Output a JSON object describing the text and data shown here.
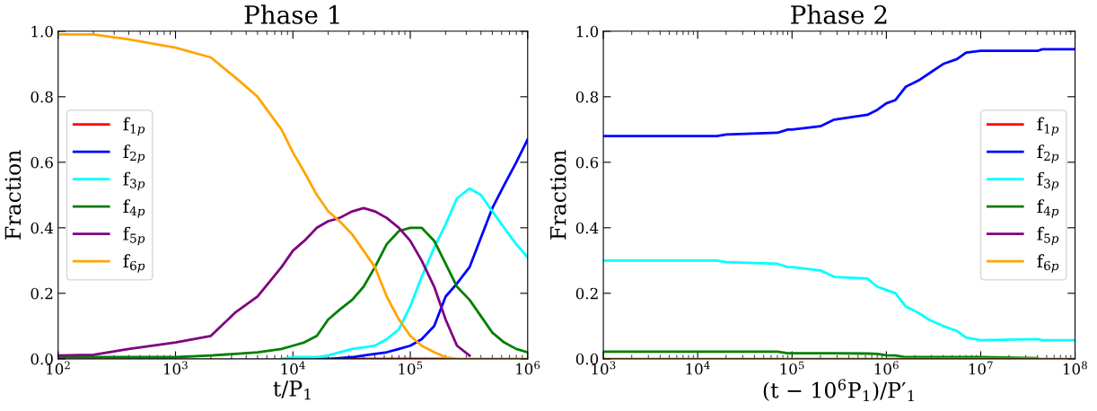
{
  "chart_data": [
    {
      "type": "line",
      "title": "Phase 1",
      "xlabel": "t/P$_{1}$",
      "ylabel": "Fraction",
      "log": "x",
      "legend": "center left",
      "grid": false,
      "xlim": [
        100,
        1000000
      ],
      "xticks": [
        {
          "value": 100,
          "label": "10$^{2}$"
        },
        {
          "value": 1000,
          "label": "10$^{3}$"
        },
        {
          "value": 10000,
          "label": "10$^{4}$"
        },
        {
          "value": 100000,
          "label": "10$^{5}$"
        },
        {
          "value": 1000000,
          "label": "10$^{6}$"
        }
      ],
      "ylim": [
        0,
        1
      ],
      "yticks": [
        {
          "value": 0,
          "label": "0.0"
        },
        {
          "value": 0.2,
          "label": "0.2"
        },
        {
          "value": 0.4,
          "label": "0.4"
        },
        {
          "value": 0.6,
          "label": "0.6"
        },
        {
          "value": 0.8,
          "label": "0.8"
        },
        {
          "value": 1,
          "label": "1.0"
        }
      ],
      "x": [
        100,
        200,
        400,
        1000,
        2000,
        3200,
        5000,
        8000,
        10000,
        12500,
        16000,
        20000,
        25000,
        32000,
        40000,
        50000,
        63000,
        80000,
        100000,
        125000,
        160000,
        200000,
        250000,
        320000,
        400000,
        500000,
        630000,
        800000,
        1000000
      ],
      "series": [
        {
          "name": "f$_{1p}$",
          "color": "#ff0000",
          "values": [
            null,
            null,
            null,
            null,
            null,
            null,
            null,
            null,
            null,
            null,
            null,
            null,
            null,
            0,
            0,
            0,
            0,
            0,
            0,
            0,
            0,
            0,
            null,
            null,
            null,
            null,
            null,
            null,
            null
          ]
        },
        {
          "name": "f$_{2p}$",
          "color": "#0000ff",
          "values": [
            null,
            null,
            null,
            null,
            null,
            null,
            null,
            null,
            null,
            null,
            0,
            0,
            0.002,
            0.005,
            0.01,
            0.015,
            0.02,
            0.03,
            0.04,
            0.06,
            0.1,
            0.19,
            0.23,
            0.28,
            0.37,
            0.46,
            0.53,
            0.6,
            0.67
          ]
        },
        {
          "name": "f$_{3p}$",
          "color": "#00ffff",
          "values": [
            null,
            null,
            null,
            null,
            null,
            null,
            null,
            0,
            0.005,
            0.005,
            0.005,
            0.01,
            0.02,
            0.03,
            0.035,
            0.04,
            0.06,
            0.09,
            0.16,
            0.25,
            0.34,
            0.41,
            0.49,
            0.52,
            0.5,
            0.45,
            0.4,
            0.35,
            0.31
          ]
        },
        {
          "name": "f$_{4p}$",
          "color": "#008000",
          "values": [
            0.005,
            0.005,
            0.005,
            0.005,
            0.01,
            0.015,
            0.02,
            0.03,
            0.04,
            0.05,
            0.07,
            0.12,
            0.15,
            0.18,
            0.22,
            0.28,
            0.35,
            0.39,
            0.4,
            0.4,
            0.36,
            0.29,
            0.22,
            0.18,
            0.13,
            0.08,
            0.05,
            0.03,
            0.02
          ]
        },
        {
          "name": "f$_{5p}$",
          "color": "#800080",
          "values": [
            0.01,
            0.012,
            0.03,
            0.05,
            0.07,
            0.14,
            0.19,
            0.28,
            0.33,
            0.36,
            0.4,
            0.42,
            0.43,
            0.45,
            0.46,
            0.45,
            0.43,
            0.4,
            0.36,
            0.3,
            0.22,
            0.12,
            0.04,
            0.01,
            null,
            null,
            null,
            null,
            null
          ]
        },
        {
          "name": "f$_{6p}$",
          "color": "#ffa500",
          "values": [
            0.99,
            0.99,
            0.975,
            0.95,
            0.92,
            0.86,
            0.8,
            0.7,
            0.63,
            0.57,
            0.5,
            0.45,
            0.42,
            0.38,
            0.33,
            0.28,
            0.19,
            0.12,
            0.07,
            0.04,
            0.02,
            0.005,
            0,
            0,
            0,
            0,
            0,
            0,
            0
          ]
        }
      ]
    },
    {
      "type": "line",
      "title": "Phase 2",
      "xlabel": "(t − 10$^{6}$P$_{1}$)/P′$_{1}$",
      "ylabel": "Fraction",
      "log": "x",
      "legend": "center right",
      "grid": false,
      "xlim": [
        1000,
        100000000
      ],
      "xticks": [
        {
          "value": 1000,
          "label": "10$^{3}$"
        },
        {
          "value": 10000,
          "label": "10$^{4}$"
        },
        {
          "value": 100000,
          "label": "10$^{5}$"
        },
        {
          "value": 1000000,
          "label": "10$^{6}$"
        },
        {
          "value": 10000000,
          "label": "10$^{7}$"
        },
        {
          "value": 100000000,
          "label": "10$^{8}$"
        }
      ],
      "ylim": [
        0,
        1
      ],
      "yticks": [
        {
          "value": 0,
          "label": "0.0"
        },
        {
          "value": 0.2,
          "label": "0.2"
        },
        {
          "value": 0.4,
          "label": "0.4"
        },
        {
          "value": 0.6,
          "label": "0.6"
        },
        {
          "value": 0.8,
          "label": "0.8"
        },
        {
          "value": 1,
          "label": "1.0"
        }
      ],
      "x": [
        1000,
        16000,
        20000,
        70000,
        90000,
        100000,
        200000,
        280000,
        630000,
        800000,
        1000000,
        1250000,
        1600000,
        2200000,
        2800000,
        4000000,
        5600000,
        7000000,
        10000000,
        40000000,
        45000000,
        100000000
      ],
      "series": [
        {
          "name": "f$_{1p}$",
          "color": "#ff0000",
          "values": [
            null,
            null,
            null,
            null,
            null,
            null,
            null,
            null,
            null,
            null,
            null,
            null,
            null,
            null,
            null,
            null,
            null,
            null,
            null,
            null,
            null,
            null
          ]
        },
        {
          "name": "f$_{2p}$",
          "color": "#0000ff",
          "values": [
            0.68,
            0.68,
            0.685,
            0.69,
            0.7,
            0.7,
            0.71,
            0.73,
            0.745,
            0.76,
            0.78,
            0.79,
            0.83,
            0.85,
            0.87,
            0.9,
            0.915,
            0.935,
            0.94,
            0.94,
            0.945,
            0.945
          ]
        },
        {
          "name": "f$_{3p}$",
          "color": "#00ffff",
          "values": [
            0.3,
            0.3,
            0.295,
            0.29,
            0.28,
            0.28,
            0.27,
            0.25,
            0.245,
            0.22,
            0.21,
            0.2,
            0.16,
            0.14,
            0.12,
            0.1,
            0.085,
            0.065,
            0.057,
            0.06,
            0.057,
            0.057
          ]
        },
        {
          "name": "f$_{4p}$",
          "color": "#008000",
          "values": [
            0.022,
            0.022,
            0.022,
            0.022,
            0.017,
            0.017,
            0.017,
            0.017,
            0.016,
            0.015,
            0.011,
            0.01,
            0.005,
            0.005,
            0.005,
            0.005,
            0.005,
            0.005,
            0.005,
            0.002,
            null,
            null
          ]
        },
        {
          "name": "f$_{5p}$",
          "color": "#800080",
          "values": [
            null,
            null,
            null,
            null,
            null,
            null,
            null,
            null,
            null,
            null,
            null,
            null,
            null,
            null,
            null,
            null,
            null,
            null,
            null,
            null,
            null,
            null
          ]
        },
        {
          "name": "f$_{6p}$",
          "color": "#ffa500",
          "values": [
            0,
            0,
            0,
            0,
            0,
            0,
            0,
            0,
            0,
            0,
            0,
            0,
            0,
            0,
            0,
            0,
            0,
            0,
            0,
            0,
            0,
            0
          ]
        }
      ]
    }
  ]
}
